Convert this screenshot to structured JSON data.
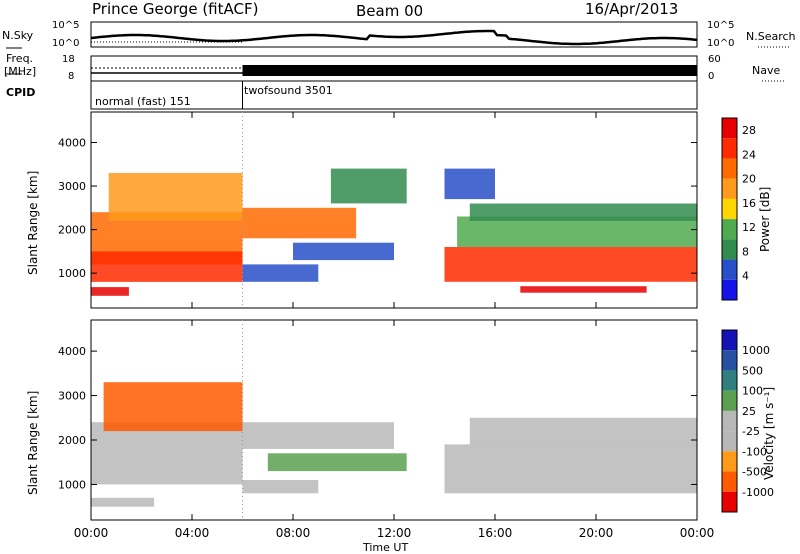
{
  "header": {
    "station": "Prince George (fitACF)",
    "beam": "Beam 00",
    "date": "16/Apr/2013"
  },
  "small_panels": {
    "nsky_label": "N.Sky",
    "nsky_ticks": [
      "10^5",
      "10^0"
    ],
    "nsearch_label": "N.Search",
    "nsearch_ticks": [
      "10^5",
      "10^0"
    ],
    "freq_label": "Freq.",
    "freq_unit": "[MHz]",
    "freq_ticks": [
      "18",
      "8"
    ],
    "nave_label": "Nave",
    "nave_ticks": [
      "60",
      "0"
    ],
    "cpid_label": "CPID",
    "cpid_segments": [
      "normal (fast) 151",
      "twofsound 3501"
    ]
  },
  "colors": {
    "power": [
      "#1414e6",
      "#2850c8",
      "#328c50",
      "#50aa50",
      "#ffd700",
      "#ff9a1a",
      "#ff6a00",
      "#ff2a00",
      "#e60000"
    ],
    "velocity": [
      "#1414b4",
      "#2850a0",
      "#2f7f7f",
      "#5aa050",
      "#b8b8b8",
      "#b8b8b8",
      "#ff9a1a",
      "#ff5a00",
      "#e60000"
    ]
  },
  "chart_data": [
    {
      "type": "heatmap",
      "ylabel": "Slant Range [km]",
      "xlabel": "Time UT",
      "x_ticks": [
        "00:00",
        "04:00",
        "08:00",
        "12:00",
        "16:00",
        "20:00",
        "00:00"
      ],
      "xlim_hours": [
        0,
        24
      ],
      "y_ticks": [
        1000,
        2000,
        3000,
        4000
      ],
      "ylim": [
        200,
        4700
      ],
      "colorbar": {
        "label": "Power [dB]",
        "ticks": [
          4,
          8,
          12,
          16,
          20,
          24,
          28
        ],
        "range": [
          0,
          30
        ]
      },
      "bands": [
        {
          "t0": 0.0,
          "t1": 6.0,
          "r0": 1200,
          "r1": 2400,
          "value": 22
        },
        {
          "t0": 0.0,
          "t1": 6.0,
          "r0": 800,
          "r1": 1500,
          "value": 26
        },
        {
          "t0": 0.7,
          "t1": 6.0,
          "r0": 2200,
          "r1": 3300,
          "value": 17
        },
        {
          "t0": 0.0,
          "t1": 1.5,
          "r0": 480,
          "r1": 680,
          "value": 27
        },
        {
          "t0": 6.0,
          "t1": 10.5,
          "r0": 1800,
          "r1": 2500,
          "value": 20
        },
        {
          "t0": 6.0,
          "t1": 9.0,
          "r0": 800,
          "r1": 1200,
          "value": 6
        },
        {
          "t0": 8.0,
          "t1": 12.0,
          "r0": 1300,
          "r1": 1700,
          "value": 5
        },
        {
          "t0": 9.5,
          "t1": 12.5,
          "r0": 2600,
          "r1": 3400,
          "value": 7
        },
        {
          "t0": 14.0,
          "t1": 24.0,
          "r0": 800,
          "r1": 1600,
          "value": 24
        },
        {
          "t0": 14.5,
          "t1": 24.0,
          "r0": 1600,
          "r1": 2300,
          "value": 13
        },
        {
          "t0": 15.0,
          "t1": 24.0,
          "r0": 2200,
          "r1": 2600,
          "value": 9
        },
        {
          "t0": 17.0,
          "t1": 22.0,
          "r0": 550,
          "r1": 700,
          "value": 28
        },
        {
          "t0": 14.0,
          "t1": 16.0,
          "r0": 2700,
          "r1": 3400,
          "value": 6
        }
      ]
    },
    {
      "type": "heatmap",
      "ylabel": "Slant Range [km]",
      "xlabel": "Time UT",
      "x_ticks": [
        "00:00",
        "04:00",
        "08:00",
        "12:00",
        "16:00",
        "20:00",
        "00:00"
      ],
      "xlim_hours": [
        0,
        24
      ],
      "y_ticks": [
        1000,
        2000,
        3000,
        4000
      ],
      "ylim": [
        200,
        4700
      ],
      "colorbar": {
        "label": "Velocity [m s⁻¹]",
        "ticks": [
          1000,
          500,
          100,
          25,
          -25,
          -100,
          -500,
          -1000
        ]
      },
      "bands": [
        {
          "t0": 0.0,
          "t1": 6.0,
          "r0": 1000,
          "r1": 2400,
          "value": 0
        },
        {
          "t0": 0.5,
          "t1": 6.0,
          "r0": 2200,
          "r1": 3300,
          "value": -200
        },
        {
          "t0": 0.0,
          "t1": 2.5,
          "r0": 500,
          "r1": 700,
          "value": 0
        },
        {
          "t0": 6.0,
          "t1": 12.0,
          "r0": 1800,
          "r1": 2400,
          "value": 0
        },
        {
          "t0": 7.0,
          "t1": 12.5,
          "r0": 1300,
          "r1": 1700,
          "value": 60
        },
        {
          "t0": 6.0,
          "t1": 9.0,
          "r0": 800,
          "r1": 1100,
          "value": 0
        },
        {
          "t0": 14.0,
          "t1": 24.0,
          "r0": 800,
          "r1": 1900,
          "value": 0
        },
        {
          "t0": 15.0,
          "t1": 24.0,
          "r0": 1900,
          "r1": 2500,
          "value": 0
        }
      ]
    }
  ]
}
